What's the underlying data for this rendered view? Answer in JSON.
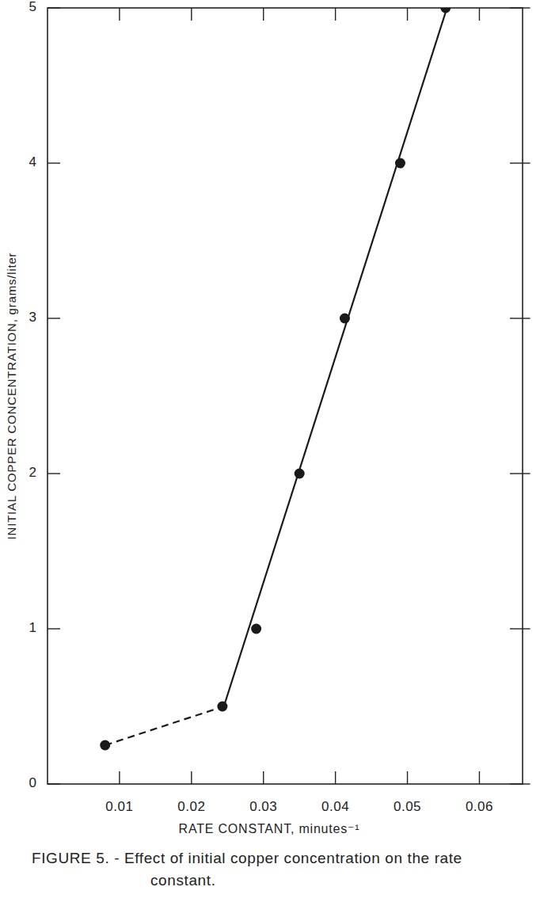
{
  "chart_data": {
    "type": "scatter",
    "title": "FIGURE 5. - Effect of initial copper concentration on the rate constant.",
    "x_label": "RATE CONSTANT, minutes⁻¹",
    "y_label": "INITIAL COPPER CONCENTRATION, grams/liter",
    "xlim": [
      0,
      0.066
    ],
    "ylim": [
      0,
      5
    ],
    "xticks": [
      0.01,
      0.02,
      0.03,
      0.04,
      0.05,
      0.06
    ],
    "yticks": [
      0,
      1,
      2,
      3,
      4,
      5
    ],
    "grid": false,
    "series": [
      {
        "type": "scatter",
        "marker": "circle",
        "color": "#1a1a1a",
        "x": [
          0.008,
          0.0243,
          0.029,
          0.035,
          0.0413,
          0.049,
          0.0553
        ],
        "values": [
          0.25,
          0.5,
          1,
          2,
          3,
          4,
          5
        ]
      },
      {
        "type": "line",
        "line_style": "dashed",
        "color": "#1a1a1a",
        "x": [
          0.008,
          0.0245
        ],
        "values": [
          0.25,
          0.5
        ]
      },
      {
        "type": "line",
        "line_style": "solid",
        "color": "#1a1a1a",
        "x": [
          0.0245,
          0.0555
        ],
        "values": [
          0.5,
          5
        ]
      }
    ]
  }
}
